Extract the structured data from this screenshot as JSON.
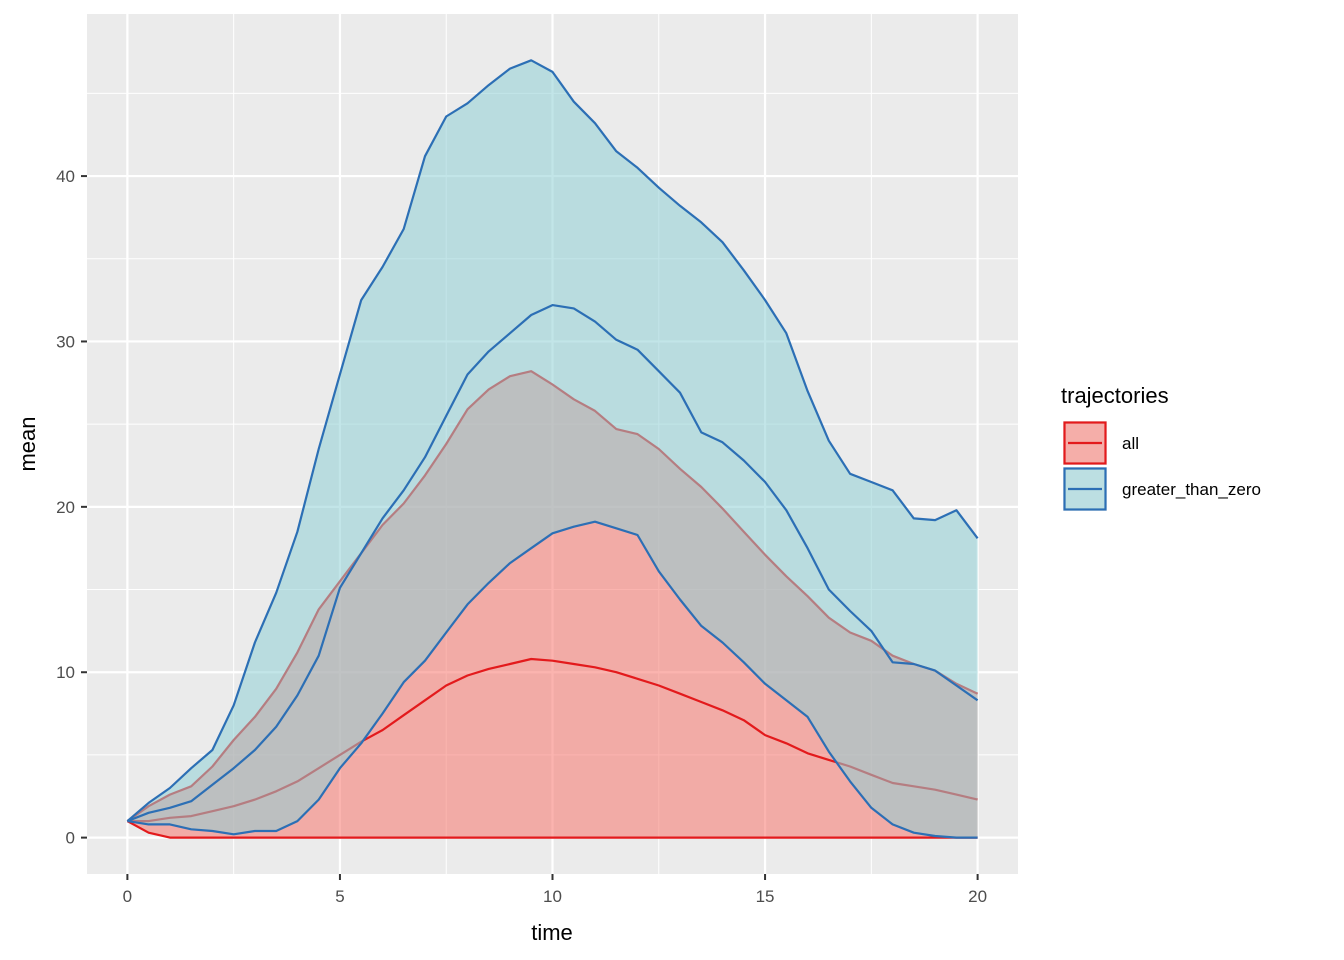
{
  "chart_data": {
    "type": "area",
    "xlabel": "time",
    "ylabel": "mean",
    "xlim": [
      -0.95,
      20.95
    ],
    "ylim": [
      -2.2,
      49.8
    ],
    "x_ticks": [
      0,
      5,
      10,
      15,
      20
    ],
    "y_ticks": [
      0,
      10,
      20,
      30,
      40
    ],
    "grid": true,
    "legend": {
      "title": "trajectories",
      "placement": "right"
    },
    "series": [
      {
        "name": "all",
        "color": "#e31a1c",
        "fill": "#f8766d",
        "x": [
          0,
          0.5,
          1,
          1.5,
          2,
          2.5,
          3,
          3.5,
          4,
          4.5,
          5,
          5.5,
          6,
          6.5,
          7,
          7.5,
          8,
          8.5,
          9,
          9.5,
          10,
          10.5,
          11,
          11.5,
          12,
          12.5,
          13,
          13.5,
          14,
          14.5,
          15,
          15.5,
          16,
          16.5,
          17,
          17.5,
          18,
          18.5,
          19,
          19.5,
          20
        ],
        "mean": [
          1.0,
          1.0,
          1.2,
          1.3,
          1.6,
          1.9,
          2.3,
          2.8,
          3.4,
          4.2,
          5.0,
          5.8,
          6.5,
          7.4,
          8.3,
          9.2,
          9.8,
          10.2,
          10.5,
          10.8,
          10.7,
          10.5,
          10.3,
          10.0,
          9.6,
          9.2,
          8.7,
          8.2,
          7.7,
          7.1,
          6.2,
          5.7,
          5.1,
          4.7,
          4.3,
          3.8,
          3.3,
          3.1,
          2.9,
          2.6,
          2.3
        ],
        "upper": [
          1.0,
          1.9,
          2.6,
          3.1,
          4.3,
          5.9,
          7.3,
          9.0,
          11.2,
          13.8,
          15.5,
          17.2,
          18.9,
          20.2,
          21.9,
          23.8,
          25.9,
          27.1,
          27.9,
          28.2,
          27.4,
          26.5,
          25.8,
          24.7,
          24.4,
          23.5,
          22.3,
          21.2,
          19.9,
          18.5,
          17.1,
          15.8,
          14.6,
          13.3,
          12.4,
          11.9,
          11.0,
          10.5,
          10.1,
          9.3,
          8.7
        ],
        "lower": [
          1.0,
          0.3,
          0,
          0,
          0,
          0,
          0,
          0,
          0,
          0,
          0,
          0,
          0,
          0,
          0,
          0,
          0,
          0,
          0,
          0,
          0,
          0,
          0,
          0,
          0,
          0,
          0,
          0,
          0,
          0,
          0,
          0,
          0,
          0,
          0,
          0,
          0,
          0,
          0,
          0,
          0
        ]
      },
      {
        "name": "greater_than_zero",
        "color": "#2c6fb5",
        "fill": "#8fd0d6",
        "x": [
          0,
          0.5,
          1,
          1.5,
          2,
          2.5,
          3,
          3.5,
          4,
          4.5,
          5,
          5.5,
          6,
          6.5,
          7,
          7.5,
          8,
          8.5,
          9,
          9.5,
          10,
          10.5,
          11,
          11.5,
          12,
          12.5,
          13,
          13.5,
          14,
          14.5,
          15,
          15.5,
          16,
          16.5,
          17,
          17.5,
          18,
          18.5,
          19,
          19.5,
          20
        ],
        "mean": [
          1.0,
          1.5,
          1.8,
          2.2,
          3.2,
          4.2,
          5.3,
          6.7,
          8.6,
          11.0,
          15.1,
          17.2,
          19.3,
          21.0,
          23.0,
          25.5,
          28.0,
          29.4,
          30.5,
          31.6,
          32.2,
          32.0,
          31.2,
          30.1,
          29.5,
          28.2,
          26.9,
          24.5,
          23.9,
          22.8,
          21.5,
          19.8,
          17.5,
          15.0,
          13.7,
          12.5,
          10.6,
          10.5,
          10.1,
          9.2,
          8.3
        ],
        "upper": [
          1.0,
          2.1,
          3.0,
          4.2,
          5.3,
          8.0,
          11.8,
          14.8,
          18.5,
          23.5,
          28.0,
          32.5,
          34.5,
          36.8,
          41.2,
          43.6,
          44.4,
          45.5,
          46.5,
          47.0,
          46.3,
          44.5,
          43.2,
          41.5,
          40.5,
          39.3,
          38.2,
          37.2,
          36.0,
          34.3,
          32.5,
          30.5,
          27.0,
          24.0,
          22.0,
          21.5,
          21.0,
          19.3,
          19.2,
          19.8,
          18.1
        ],
        "lower": [
          1.0,
          0.8,
          0.8,
          0.5,
          0.4,
          0.2,
          0.4,
          0.4,
          1.0,
          2.3,
          4.2,
          5.7,
          7.5,
          9.4,
          10.7,
          12.4,
          14.1,
          15.4,
          16.6,
          17.5,
          18.4,
          18.8,
          19.1,
          18.7,
          18.3,
          16.1,
          14.4,
          12.8,
          11.8,
          10.6,
          9.3,
          8.3,
          7.3,
          5.2,
          3.4,
          1.8,
          0.8,
          0.3,
          0.1,
          0,
          0
        ]
      }
    ]
  }
}
